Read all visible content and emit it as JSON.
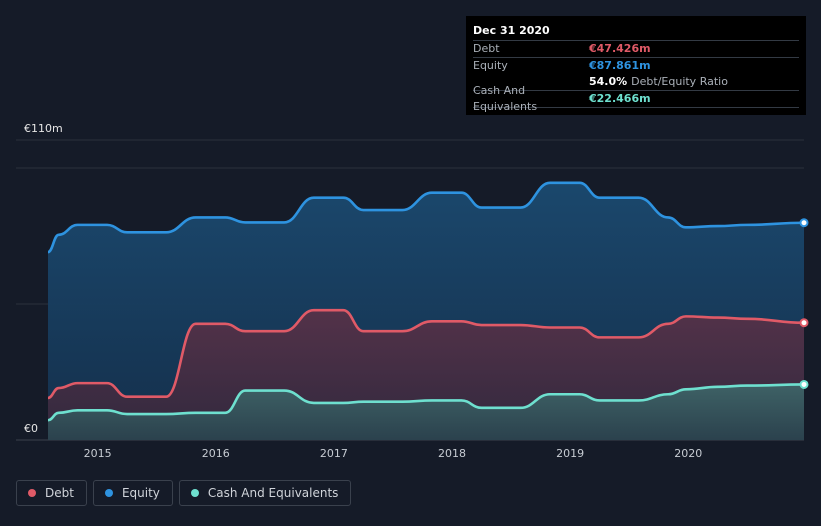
{
  "tooltip": {
    "date": "Dec 31 2020",
    "debt_label": "Debt",
    "debt_value": "€47.426m",
    "equity_label": "Equity",
    "equity_value": "€87.861m",
    "ratio_value": "54.0%",
    "ratio_label": "Debt/Equity Ratio",
    "cash_label": "Cash And Equivalents",
    "cash_value": "€22.466m"
  },
  "legend": {
    "debt": "Debt",
    "equity": "Equity",
    "cash": "Cash And Equivalents"
  },
  "colors": {
    "debt": "#e05a67",
    "equity": "#2e93e0",
    "cash": "#6ee0cf",
    "background": "#151b28"
  },
  "chart_data": {
    "type": "area",
    "ylim": [
      0,
      110
    ],
    "ytick_labels": [
      "€110m",
      "€0"
    ],
    "yticks": [
      110,
      0
    ],
    "xlim": [
      2014.58,
      2020.98
    ],
    "xtick_labels": [
      "2015",
      "2016",
      "2017",
      "2018",
      "2019",
      "2020"
    ],
    "xticks": [
      2015,
      2016,
      2017,
      2018,
      2019,
      2020
    ],
    "series": [
      {
        "name": "Equity",
        "x": [
          2014.58,
          2014.67,
          2014.83,
          2015.08,
          2015.25,
          2015.58,
          2015.83,
          2016.08,
          2016.25,
          2016.58,
          2016.83,
          2017.08,
          2017.25,
          2017.58,
          2017.83,
          2018.08,
          2018.25,
          2018.58,
          2018.83,
          2019.08,
          2019.25,
          2019.58,
          2019.83,
          2019.98,
          2020.25,
          2020.5,
          2020.98
        ],
        "values": [
          76,
          83,
          87,
          87,
          84,
          84,
          90,
          90,
          88,
          88,
          98,
          98,
          93,
          93,
          100,
          100,
          94,
          94,
          104,
          104,
          98,
          98,
          90,
          86,
          86.5,
          87,
          87.861
        ]
      },
      {
        "name": "Debt",
        "x": [
          2014.58,
          2014.67,
          2014.83,
          2015.08,
          2015.25,
          2015.58,
          2015.83,
          2016.08,
          2016.25,
          2016.58,
          2016.83,
          2017.08,
          2017.25,
          2017.58,
          2017.83,
          2018.08,
          2018.25,
          2018.58,
          2018.83,
          2019.08,
          2019.25,
          2019.58,
          2019.83,
          2019.98,
          2020.25,
          2020.5,
          2020.98
        ],
        "values": [
          17,
          21,
          23,
          23,
          17.5,
          17.5,
          47,
          47,
          44,
          44,
          52.5,
          52.5,
          44,
          44,
          48,
          48,
          46.5,
          46.5,
          45.5,
          45.5,
          41.5,
          41.5,
          47,
          50,
          49.5,
          49,
          47.426
        ]
      },
      {
        "name": "Cash And Equivalents",
        "x": [
          2014.58,
          2014.67,
          2014.83,
          2015.08,
          2015.25,
          2015.58,
          2015.83,
          2016.08,
          2016.25,
          2016.58,
          2016.83,
          2017.08,
          2017.25,
          2017.58,
          2017.83,
          2018.08,
          2018.25,
          2018.58,
          2018.83,
          2019.08,
          2019.25,
          2019.58,
          2019.83,
          2019.98,
          2020.25,
          2020.5,
          2020.98
        ],
        "values": [
          8,
          11,
          12,
          12,
          10.5,
          10.5,
          11,
          11,
          20,
          20,
          15,
          15,
          15.5,
          15.5,
          16,
          16,
          13,
          13,
          18.5,
          18.5,
          16,
          16,
          18.5,
          20.5,
          21.5,
          22,
          22.466
        ]
      }
    ]
  }
}
